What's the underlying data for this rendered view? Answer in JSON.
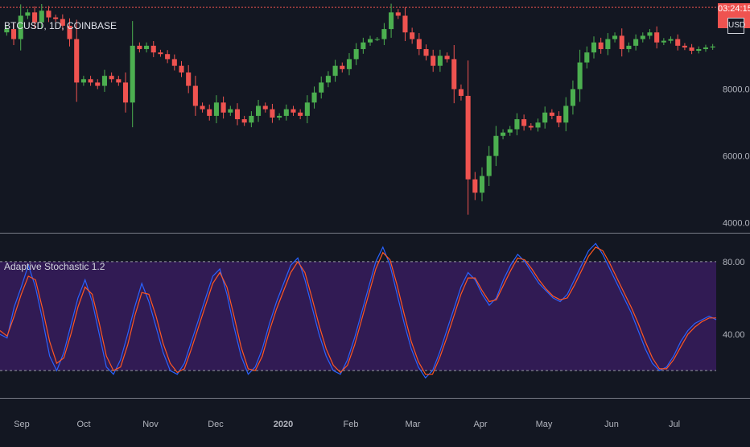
{
  "symbol_label": "BTCUSD, 1D, COINBASE",
  "currency": "USD",
  "last_price_label": "03:24:15",
  "indicator_label": "Adaptive Stochastic 1.2",
  "colors": {
    "background": "#131722",
    "up": "#4caf50",
    "down": "#ef5350",
    "k_line": "#2962ff",
    "d_line": "#ff5722",
    "band_fill": "#311b54",
    "separator": "#787b86"
  },
  "chart_data": [
    {
      "type": "candlestick",
      "title": "BTCUSD, 1D, COINBASE",
      "y_ticks": [
        "8000.00",
        "6000.00",
        "4000.00"
      ],
      "ylim": [
        3700,
        10550
      ],
      "last_price_line": 10450,
      "x_ticks": [
        "Sep",
        "Oct",
        "Nov",
        "Dec",
        "2020",
        "Feb",
        "Mar",
        "Apr",
        "May",
        "Jun",
        "Jul"
      ],
      "close_series": [
        9800,
        9500,
        10200,
        10300,
        10000,
        10350,
        10150,
        10100,
        9900,
        9500,
        8200,
        8300,
        8200,
        8100,
        8400,
        8300,
        8200,
        7600,
        9300,
        9200,
        9300,
        9100,
        9050,
        8900,
        8700,
        8500,
        8100,
        7500,
        7400,
        7200,
        7600,
        7300,
        7400,
        7100,
        7000,
        7200,
        7500,
        7400,
        7150,
        7200,
        7400,
        7300,
        7200,
        7600,
        7900,
        8200,
        8400,
        8700,
        8600,
        8900,
        9200,
        9400,
        9500,
        9500,
        9800,
        10300,
        10200,
        9700,
        9500,
        9200,
        9000,
        8700,
        9000,
        8900,
        8000,
        7800,
        5300,
        4900,
        5400,
        6000,
        6600,
        6700,
        6800,
        7100,
        6900,
        6850,
        7000,
        7300,
        7200,
        7000,
        7500,
        8000,
        8800,
        9100,
        9400,
        9200,
        9500,
        9600,
        9200,
        9300,
        9500,
        9600,
        9700,
        9400,
        9450,
        9500,
        9300,
        9250,
        9150,
        9200,
        9250,
        9280
      ]
    },
    {
      "type": "line",
      "title": "Adaptive Stochastic 1.2",
      "y_ticks": [
        "80.00",
        "40.00"
      ],
      "ylim": [
        5,
        95
      ],
      "band": [
        20,
        80
      ],
      "series": [
        {
          "values": [
            40,
            38,
            55,
            66,
            78,
            66,
            48,
            28,
            20,
            30,
            45,
            60,
            70,
            58,
            40,
            22,
            18,
            26,
            40,
            55,
            68,
            58,
            44,
            30,
            20,
            18,
            24,
            36,
            48,
            60,
            72,
            76,
            62,
            44,
            28,
            18,
            22,
            32,
            46,
            58,
            68,
            78,
            82,
            70,
            55,
            40,
            28,
            20,
            18,
            26,
            38,
            52,
            66,
            80,
            88,
            78,
            62,
            46,
            32,
            22,
            16,
            20,
            30,
            42,
            54,
            66,
            74,
            70,
            62,
            56,
            60,
            70,
            78,
            84,
            80,
            74,
            68,
            64,
            60,
            58,
            62,
            70,
            78,
            86,
            90,
            84,
            76,
            68,
            60,
            52,
            42,
            32,
            24,
            20,
            22,
            28,
            36,
            42,
            46,
            48,
            50,
            48
          ]
        },
        {
          "values": [
            42,
            39,
            50,
            62,
            72,
            70,
            54,
            36,
            24,
            27,
            40,
            55,
            66,
            62,
            46,
            28,
            20,
            22,
            34,
            50,
            63,
            62,
            50,
            35,
            24,
            19,
            21,
            32,
            44,
            56,
            68,
            74,
            66,
            50,
            33,
            21,
            20,
            28,
            42,
            54,
            64,
            74,
            80,
            74,
            60,
            45,
            32,
            23,
            19,
            23,
            34,
            48,
            62,
            76,
            85,
            81,
            67,
            51,
            36,
            25,
            18,
            18,
            27,
            38,
            50,
            62,
            71,
            71,
            64,
            58,
            59,
            67,
            75,
            82,
            81,
            76,
            70,
            65,
            61,
            59,
            60,
            67,
            75,
            83,
            88,
            86,
            79,
            71,
            63,
            55,
            46,
            36,
            27,
            21,
            21,
            26,
            33,
            40,
            44,
            47,
            49,
            49
          ]
        }
      ]
    }
  ]
}
